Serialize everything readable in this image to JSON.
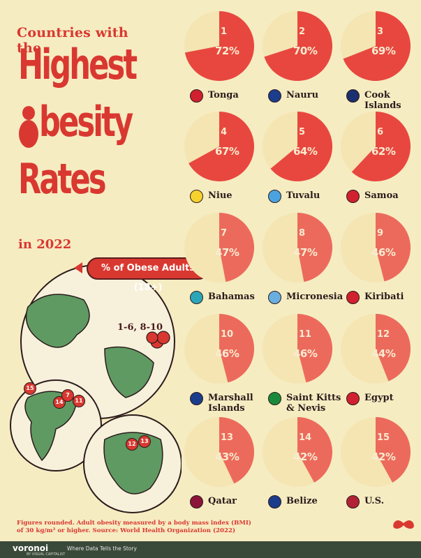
{
  "header": {
    "subtitle": "Countries with the",
    "title_line1": "Highest",
    "title_line2": "besity",
    "title_line3": "Rates",
    "year": "in 2022"
  },
  "legend_pill": "% of Obese Adults (18+)",
  "map": {
    "region_label": "1-6, 8-10",
    "pins": [
      "15",
      "14",
      "7",
      "11",
      "12",
      "13"
    ]
  },
  "chart_data": {
    "type": "pie",
    "title": "Countries with the Highest Obesity Rates in 2022",
    "unit": "% of Obese Adults (18+)",
    "items": [
      {
        "rank": "1",
        "country": "Tonga",
        "value": 72,
        "label": "72%"
      },
      {
        "rank": "2",
        "country": "Nauru",
        "value": 70,
        "label": "70%"
      },
      {
        "rank": "3",
        "country": "Cook Islands",
        "value": 69,
        "label": "69%"
      },
      {
        "rank": "4",
        "country": "Niue",
        "value": 67,
        "label": "67%"
      },
      {
        "rank": "5",
        "country": "Tuvalu",
        "value": 64,
        "label": "64%"
      },
      {
        "rank": "6",
        "country": "Samoa",
        "value": 62,
        "label": "62%"
      },
      {
        "rank": "7",
        "country": "Bahamas",
        "value": 47,
        "label": "47%"
      },
      {
        "rank": "8",
        "country": "Micronesia",
        "value": 47,
        "label": "47%"
      },
      {
        "rank": "9",
        "country": "Kiribati",
        "value": 46,
        "label": "46%"
      },
      {
        "rank": "10",
        "country": "Marshall Islands",
        "value": 46,
        "label": "46%"
      },
      {
        "rank": "11",
        "country": "Saint Kitts & Nevis",
        "value": 46,
        "label": "46%"
      },
      {
        "rank": "12",
        "country": "Egypt",
        "value": 44,
        "label": "44%"
      },
      {
        "rank": "13",
        "country": "Qatar",
        "value": 43,
        "label": "43%"
      },
      {
        "rank": "14",
        "country": "Belize",
        "value": 42,
        "label": "42%"
      },
      {
        "rank": "15",
        "country": "U.S.",
        "value": 42,
        "label": "42%"
      }
    ]
  },
  "flags": {
    "Tonga": "#d1202f",
    "Nauru": "#1c3c8c",
    "Cook Islands": "#1c2f6e",
    "Niue": "#f6d22e",
    "Tuvalu": "#4aa3df",
    "Samoa": "#d1202f",
    "Bahamas": "#2aa6b8",
    "Micronesia": "#6aaee0",
    "Kiribati": "#d1202f",
    "Marshall Islands": "#1c3c8c",
    "Saint Kitts & Nevis": "#1a8a3a",
    "Egypt": "#d1202f",
    "Qatar": "#8a1538",
    "Belize": "#1c3c8c",
    "U.S.": "#b22234"
  },
  "colors": {
    "accent": "#d93830",
    "background": "#f6ecc2",
    "disc": "#f4e5b2",
    "wedge": "#e8473f",
    "wedge_light": "#ec6a5c"
  },
  "footnote": "Figures rounded. Adult obesity measured by a body mass index (BMI) of 30 kg/m² or higher. Source: World Health Organization (2022)",
  "footer": {
    "brand": "voronoi",
    "brand_sub": "BY VISUAL CAPITALIST",
    "tagline": "Where Data Tells the Story"
  }
}
